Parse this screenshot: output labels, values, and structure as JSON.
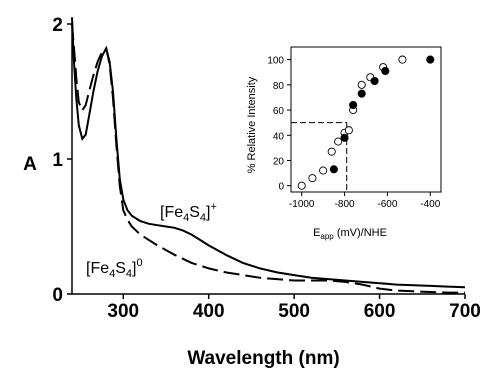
{
  "chart_data": [
    {
      "type": "line",
      "xlabel": "Wavelength (nm)",
      "ylabel": "A",
      "xlim": [
        240,
        700
      ],
      "ylim": [
        0,
        2
      ],
      "x_ticks": [
        300,
        400,
        500,
        600,
        700
      ],
      "y_ticks": [
        0,
        1,
        2
      ],
      "grid": false,
      "annotations": [
        {
          "base": "[Fe",
          "sub1": "4",
          "mid": "S",
          "sub2": "4",
          "end": "]",
          "sup": "+",
          "near": "solid"
        },
        {
          "base": "[Fe",
          "sub1": "4",
          "mid": "S",
          "sub2": "4",
          "end": "]",
          "sup": "0",
          "near": "dashed"
        }
      ],
      "series": [
        {
          "style": "solid",
          "color": "#000000",
          "x": [
            240,
            242,
            245,
            248,
            252,
            256,
            260,
            265,
            270,
            275,
            280,
            284,
            288,
            292,
            296,
            300,
            305,
            310,
            320,
            330,
            340,
            350,
            360,
            370,
            380,
            390,
            400,
            420,
            440,
            460,
            480,
            500,
            520,
            540,
            560,
            580,
            600,
            620,
            640,
            660,
            680,
            700
          ],
          "y": [
            2.05,
            1.75,
            1.45,
            1.25,
            1.15,
            1.18,
            1.32,
            1.5,
            1.65,
            1.76,
            1.82,
            1.72,
            1.5,
            1.15,
            0.85,
            0.7,
            0.62,
            0.58,
            0.54,
            0.52,
            0.51,
            0.5,
            0.49,
            0.47,
            0.44,
            0.4,
            0.36,
            0.29,
            0.23,
            0.19,
            0.16,
            0.14,
            0.12,
            0.11,
            0.1,
            0.09,
            0.08,
            0.07,
            0.065,
            0.06,
            0.055,
            0.05
          ]
        },
        {
          "style": "dashed",
          "color": "#000000",
          "x": [
            240,
            242,
            245,
            248,
            252,
            256,
            260,
            265,
            270,
            275,
            280,
            284,
            288,
            292,
            296,
            300,
            305,
            310,
            320,
            340,
            360,
            380,
            400,
            420,
            440,
            460,
            480,
            500,
            520,
            540,
            560,
            580,
            600,
            620,
            640,
            660,
            680,
            700
          ],
          "y": [
            2.0,
            1.85,
            1.6,
            1.42,
            1.36,
            1.4,
            1.5,
            1.62,
            1.72,
            1.79,
            1.82,
            1.7,
            1.45,
            1.1,
            0.8,
            0.62,
            0.55,
            0.5,
            0.44,
            0.36,
            0.29,
            0.23,
            0.19,
            0.16,
            0.14,
            0.12,
            0.11,
            0.1,
            0.1,
            0.1,
            0.09,
            0.07,
            0.04,
            0.025,
            0.02,
            0.015,
            0.01,
            0.01
          ]
        }
      ]
    },
    {
      "type": "scatter",
      "xlabel_base": "E",
      "xlabel_sub": "app",
      "xlabel_rest": " (mV)/NHE",
      "ylabel": "% Relative Intensity",
      "xlim": [
        -1050,
        -350
      ],
      "ylim": [
        -5,
        110
      ],
      "x_ticks": [
        -1000,
        -800,
        -600,
        -400
      ],
      "y_ticks": [
        0,
        20,
        40,
        60,
        80,
        100
      ],
      "grid": false,
      "reference_line": {
        "x": -790,
        "y": 50,
        "style": "dashed"
      },
      "series": [
        {
          "marker": "open-circle",
          "x": [
            -1000,
            -950,
            -900,
            -860,
            -830,
            -800,
            -780,
            -760,
            -720,
            -680,
            -620,
            -530
          ],
          "y": [
            0,
            6,
            12,
            27,
            35,
            42,
            44,
            60,
            80,
            86,
            94,
            100
          ]
        },
        {
          "marker": "filled-circle",
          "x": [
            -850,
            -800,
            -760,
            -720,
            -660,
            -610,
            -400
          ],
          "y": [
            13,
            38,
            64,
            73,
            83,
            91,
            100
          ]
        }
      ]
    }
  ]
}
